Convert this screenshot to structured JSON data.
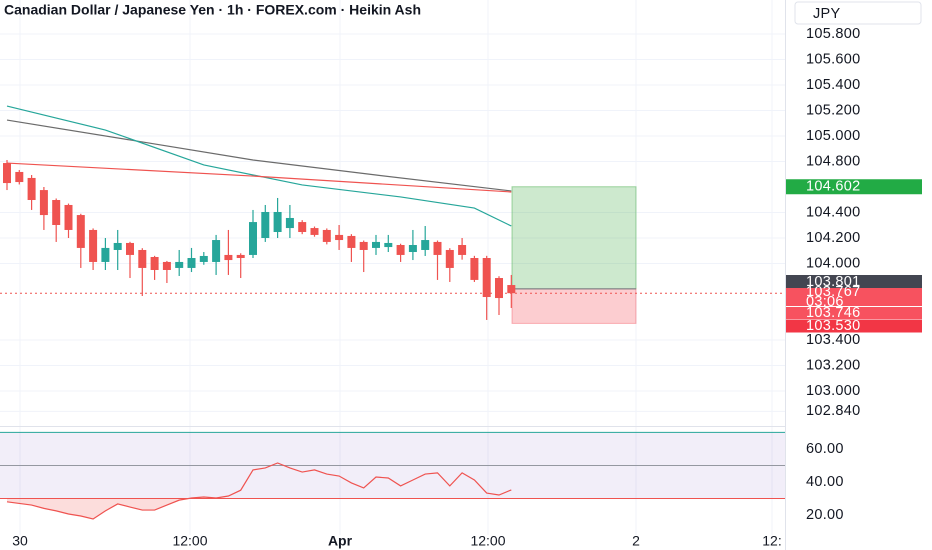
{
  "chart_data": {
    "type": "candlestick",
    "title": "Canadian Dollar / Japanese Yen · 1h · FOREX.com · Heikin Ash",
    "currency": "JPY",
    "ylim": [
      102.733,
      106.067
    ],
    "yticks": [
      {
        "value": 105.8,
        "label": "105.800"
      },
      {
        "value": 105.6,
        "label": "105.600"
      },
      {
        "value": 105.4,
        "label": "105.400"
      },
      {
        "value": 105.2,
        "label": "105.200"
      },
      {
        "value": 105.0,
        "label": "105.000"
      },
      {
        "value": 104.8,
        "label": "104.800"
      },
      {
        "value": 104.4,
        "label": "104.400"
      },
      {
        "value": 104.2,
        "label": "104.200"
      },
      {
        "value": 104.0,
        "label": "104.000"
      },
      {
        "value": 103.4,
        "label": "103.400"
      },
      {
        "value": 103.2,
        "label": "103.200"
      },
      {
        "value": 103.0,
        "label": "103.000"
      },
      {
        "value": 102.84,
        "label": "102.840"
      }
    ],
    "grid": true,
    "up_color": "#26a69a",
    "down_color": "#ef5350",
    "candles": {
      "open": [
        104.788,
        104.718,
        104.671,
        104.576,
        104.498,
        104.459,
        104.38,
        104.263,
        104.012,
        104.106,
        104.161,
        104.106,
        104.051,
        104.012,
        103.965,
        103.965,
        104.012,
        104.012,
        104.067,
        104.067,
        104.067,
        104.2,
        104.247,
        104.278,
        104.325,
        104.278,
        104.263,
        104.224,
        104.216,
        104.169,
        104.122,
        104.129,
        104.145,
        104.09,
        104.106,
        104.169,
        104.106,
        104.145,
        104.043,
        104.043,
        103.886,
        103.831
      ],
      "high": [
        104.812,
        104.733,
        104.694,
        104.6,
        104.51,
        104.47,
        104.39,
        104.275,
        104.2,
        104.263,
        104.17,
        104.12,
        104.06,
        104.02,
        104.106,
        104.122,
        104.09,
        104.224,
        104.263,
        104.08,
        104.42,
        104.459,
        104.514,
        104.459,
        104.34,
        104.29,
        104.275,
        104.302,
        104.23,
        104.18,
        104.224,
        104.224,
        104.155,
        104.263,
        104.294,
        104.18,
        104.12,
        104.2,
        104.06,
        104.06,
        103.9,
        103.91
      ],
      "low": [
        104.576,
        104.62,
        104.42,
        104.263,
        104.169,
        104.2,
        103.965,
        103.949,
        103.949,
        103.949,
        103.886,
        103.745,
        103.871,
        103.847,
        103.902,
        103.933,
        103.99,
        103.91,
        103.91,
        103.886,
        104.043,
        104.169,
        104.2,
        104.2,
        104.23,
        104.21,
        104.15,
        104.106,
        104.012,
        103.933,
        104.067,
        104.09,
        104.012,
        104.027,
        104.059,
        103.871,
        103.855,
        104.03,
        103.855,
        103.557,
        103.596,
        103.651
      ],
      "close": [
        104.631,
        104.639,
        104.498,
        104.38,
        104.302,
        104.263,
        104.122,
        104.012,
        104.122,
        104.161,
        104.067,
        103.965,
        103.949,
        103.949,
        104.012,
        104.043,
        104.059,
        104.184,
        104.027,
        104.043,
        104.325,
        104.404,
        104.404,
        104.357,
        104.247,
        104.224,
        104.169,
        104.184,
        104.122,
        104.106,
        104.169,
        104.161,
        104.067,
        104.145,
        104.184,
        104.067,
        103.965,
        104.067,
        103.871,
        103.737,
        103.729,
        103.767
      ]
    },
    "moving_averages": [
      {
        "color": "#6b6b6b",
        "x": [
          0,
          10,
          20,
          30,
          41
        ],
        "values": [
          105.125,
          104.969,
          104.812,
          104.694,
          104.569
        ]
      },
      {
        "color": "#26a69a",
        "x": [
          0,
          8,
          16,
          24,
          32,
          38,
          41
        ],
        "values": [
          105.235,
          105.047,
          104.773,
          104.616,
          104.522,
          104.435,
          104.294
        ]
      },
      {
        "color": "#ef5350",
        "x": [
          0,
          20,
          41
        ],
        "values": [
          104.788,
          104.686,
          104.561
        ]
      }
    ],
    "position": {
      "target": {
        "value": 104.602,
        "label": "104.602"
      },
      "entry": {
        "value": 103.801,
        "label": "103.801"
      },
      "stop": {
        "value": 103.53,
        "label": "103.530"
      }
    },
    "last_price": {
      "value": 103.767,
      "label": "103.767"
    },
    "countdown": "03:06",
    "bid_price": {
      "value": 103.746,
      "label": "103.746"
    },
    "time_labels": [
      "30",
      "12:00",
      "Apr",
      "12:00",
      "2",
      "12:"
    ],
    "rsi": {
      "ylim": [
        9.7,
        74.5
      ],
      "yticks": [
        {
          "value": 60,
          "label": "60.00"
        },
        {
          "value": 40,
          "label": "40.00"
        },
        {
          "value": 20,
          "label": "20.00"
        }
      ],
      "levels": [
        {
          "value": 70,
          "color": "#26a69a"
        },
        {
          "value": 50,
          "color": "#9598a1"
        },
        {
          "value": 30,
          "color": "#ef5350"
        }
      ],
      "color": "#ef5350",
      "values": [
        28,
        27,
        26,
        24,
        22.5,
        20.6,
        19.4,
        17.6,
        22.5,
        26.7,
        24.8,
        23,
        23,
        26,
        29,
        30.3,
        30.9,
        30.3,
        31.5,
        35,
        47.3,
        48.5,
        51.5,
        48.5,
        46,
        47.3,
        44.8,
        43.6,
        39.4,
        36.4,
        43,
        42.4,
        37.6,
        41.2,
        44.8,
        45.5,
        37.6,
        45.5,
        41.2,
        33.3,
        32.1,
        35.2
      ]
    }
  }
}
